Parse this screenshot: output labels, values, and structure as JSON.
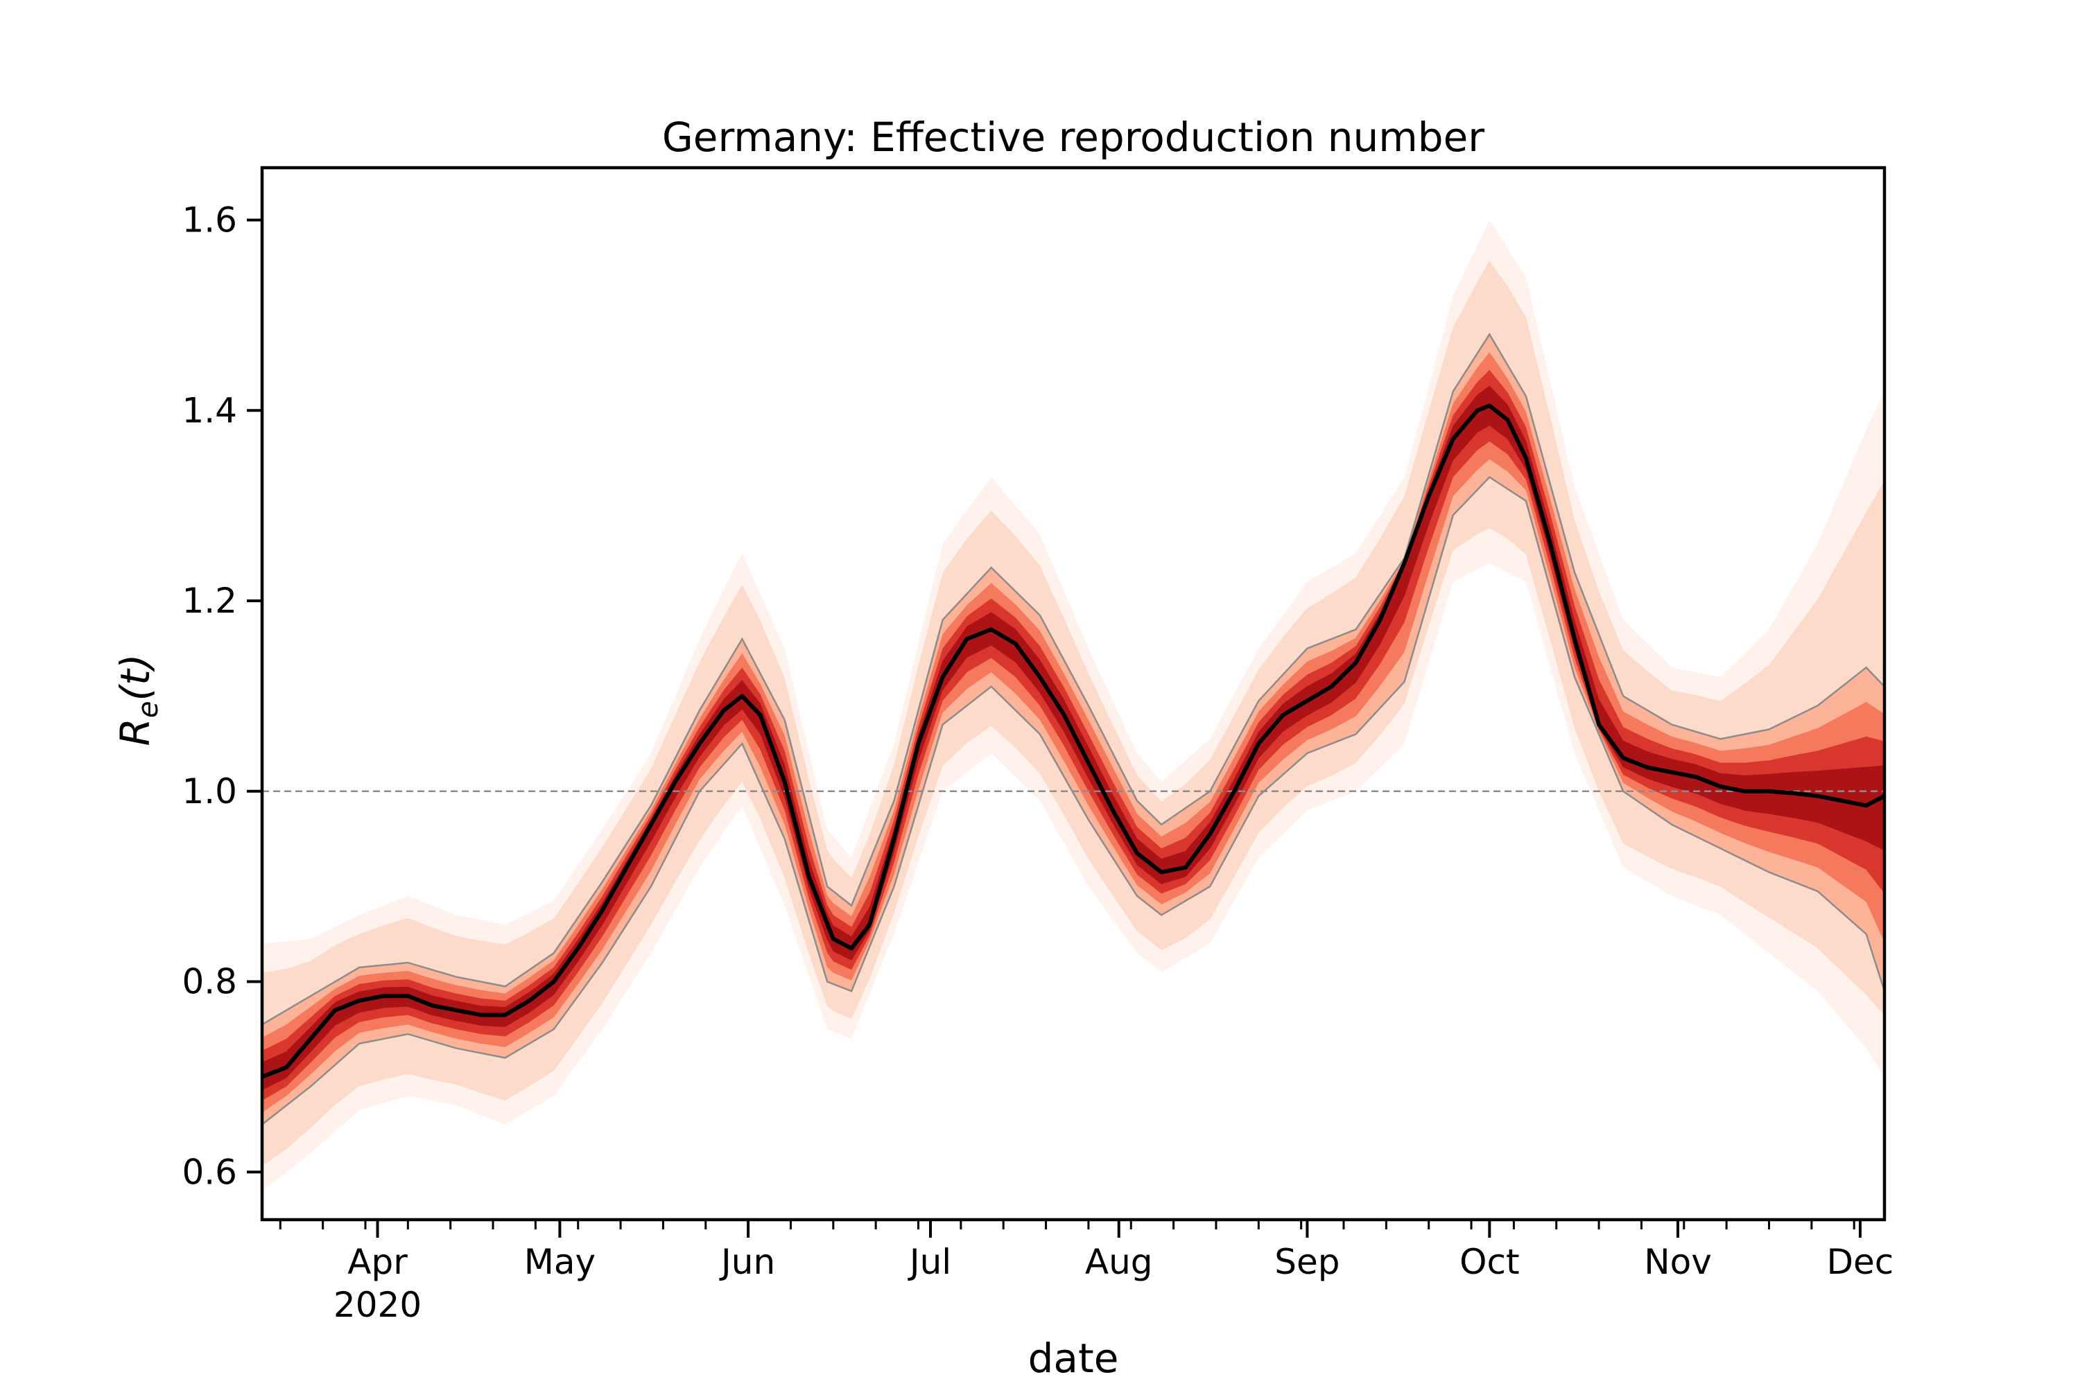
{
  "chart_data": {
    "type": "area",
    "title": "Germany: Effective reproduction number",
    "xlabel": "date",
    "ylabel_base": "R",
    "ylabel_sub": "e",
    "ylabel_tail": "(t)",
    "ylim": [
      0.55,
      1.655
    ],
    "yticks": [
      0.6,
      0.8,
      1.0,
      1.2,
      1.4,
      1.6
    ],
    "ytick_labels": [
      "0.6",
      "0.8",
      "1.0",
      "1.2",
      "1.4",
      "1.6"
    ],
    "xlim_days": [
      0,
      267
    ],
    "start_date": "2020-03-13",
    "month_ticks": [
      {
        "day": 19,
        "label": "Apr",
        "year": "2020"
      },
      {
        "day": 49,
        "label": "May"
      },
      {
        "day": 80,
        "label": "Jun"
      },
      {
        "day": 110,
        "label": "Jul"
      },
      {
        "day": 141,
        "label": "Aug"
      },
      {
        "day": 172,
        "label": "Sep"
      },
      {
        "day": 202,
        "label": "Oct"
      },
      {
        "day": 233,
        "label": "Nov"
      },
      {
        "day": 263,
        "label": "Dec"
      }
    ],
    "reference_line": 1.0,
    "colors": {
      "median": "#000000",
      "band_inner": "#a50f15",
      "band_outer": "#fcbba1",
      "bound_line": "#8c8c8c",
      "reference": "#8c8c8c"
    },
    "series": [
      {
        "name": "median",
        "days": [
          0,
          4,
          8,
          12,
          16,
          20,
          24,
          28,
          32,
          36,
          40,
          44,
          48,
          52,
          56,
          60,
          64,
          68,
          72,
          76,
          79,
          82,
          86,
          90,
          94,
          97,
          100,
          104,
          108,
          112,
          116,
          120,
          124,
          128,
          132,
          136,
          140,
          144,
          148,
          152,
          156,
          160,
          164,
          168,
          172,
          176,
          180,
          184,
          188,
          192,
          196,
          200,
          202,
          205,
          208,
          212,
          216,
          220,
          224,
          228,
          232,
          236,
          240,
          244,
          248,
          252,
          256,
          260,
          264,
          267
        ],
        "values": [
          0.7,
          0.71,
          0.74,
          0.77,
          0.78,
          0.785,
          0.785,
          0.775,
          0.77,
          0.765,
          0.765,
          0.78,
          0.8,
          0.835,
          0.875,
          0.92,
          0.965,
          1.01,
          1.05,
          1.085,
          1.1,
          1.08,
          1.01,
          0.91,
          0.845,
          0.835,
          0.86,
          0.95,
          1.05,
          1.12,
          1.16,
          1.17,
          1.155,
          1.12,
          1.08,
          1.03,
          0.98,
          0.935,
          0.915,
          0.92,
          0.955,
          1.0,
          1.05,
          1.08,
          1.095,
          1.11,
          1.135,
          1.18,
          1.24,
          1.31,
          1.37,
          1.4,
          1.405,
          1.39,
          1.35,
          1.26,
          1.16,
          1.07,
          1.035,
          1.025,
          1.02,
          1.015,
          1.005,
          1.0,
          1.0,
          0.998,
          0.995,
          0.99,
          0.985,
          0.995
        ]
      },
      {
        "name": "credible-interval-inner",
        "days": [
          0,
          8,
          16,
          24,
          32,
          40,
          48,
          56,
          64,
          72,
          79,
          86,
          93,
          97,
          104,
          112,
          120,
          128,
          136,
          144,
          148,
          156,
          164,
          172,
          180,
          188,
          196,
          202,
          208,
          216,
          224,
          232,
          240,
          248,
          256,
          264,
          267
        ],
        "upper": [
          0.755,
          0.785,
          0.815,
          0.82,
          0.805,
          0.795,
          0.83,
          0.905,
          0.985,
          1.085,
          1.16,
          1.075,
          0.9,
          0.88,
          0.99,
          1.18,
          1.235,
          1.185,
          1.09,
          0.99,
          0.965,
          1.0,
          1.095,
          1.15,
          1.17,
          1.245,
          1.42,
          1.48,
          1.415,
          1.23,
          1.1,
          1.07,
          1.055,
          1.065,
          1.09,
          1.13,
          1.11
        ],
        "lower": [
          0.65,
          0.69,
          0.735,
          0.745,
          0.73,
          0.72,
          0.75,
          0.82,
          0.9,
          1.0,
          1.05,
          0.95,
          0.8,
          0.79,
          0.9,
          1.07,
          1.11,
          1.06,
          0.97,
          0.89,
          0.87,
          0.9,
          0.995,
          1.04,
          1.06,
          1.115,
          1.29,
          1.33,
          1.305,
          1.12,
          1.0,
          0.965,
          0.94,
          0.915,
          0.895,
          0.85,
          0.79
        ]
      },
      {
        "name": "credible-interval-outer",
        "days": [
          0,
          8,
          16,
          24,
          32,
          40,
          48,
          56,
          64,
          72,
          79,
          86,
          93,
          97,
          104,
          112,
          120,
          128,
          136,
          144,
          148,
          156,
          164,
          172,
          180,
          188,
          196,
          202,
          208,
          216,
          224,
          232,
          240,
          248,
          256,
          264,
          267
        ],
        "upper": [
          0.84,
          0.845,
          0.87,
          0.89,
          0.87,
          0.86,
          0.885,
          0.96,
          1.04,
          1.16,
          1.25,
          1.15,
          0.96,
          0.93,
          1.05,
          1.26,
          1.33,
          1.27,
          1.15,
          1.04,
          1.01,
          1.055,
          1.15,
          1.22,
          1.25,
          1.33,
          1.52,
          1.6,
          1.54,
          1.32,
          1.18,
          1.13,
          1.12,
          1.17,
          1.26,
          1.38,
          1.42
        ],
        "lower": [
          0.58,
          0.62,
          0.665,
          0.68,
          0.67,
          0.65,
          0.68,
          0.75,
          0.83,
          0.92,
          0.985,
          0.88,
          0.75,
          0.74,
          0.85,
          1.0,
          1.04,
          0.99,
          0.9,
          0.83,
          0.81,
          0.84,
          0.93,
          0.98,
          1.0,
          1.05,
          1.22,
          1.24,
          1.22,
          1.04,
          0.92,
          0.89,
          0.87,
          0.83,
          0.79,
          0.73,
          0.7
        ]
      }
    ]
  }
}
